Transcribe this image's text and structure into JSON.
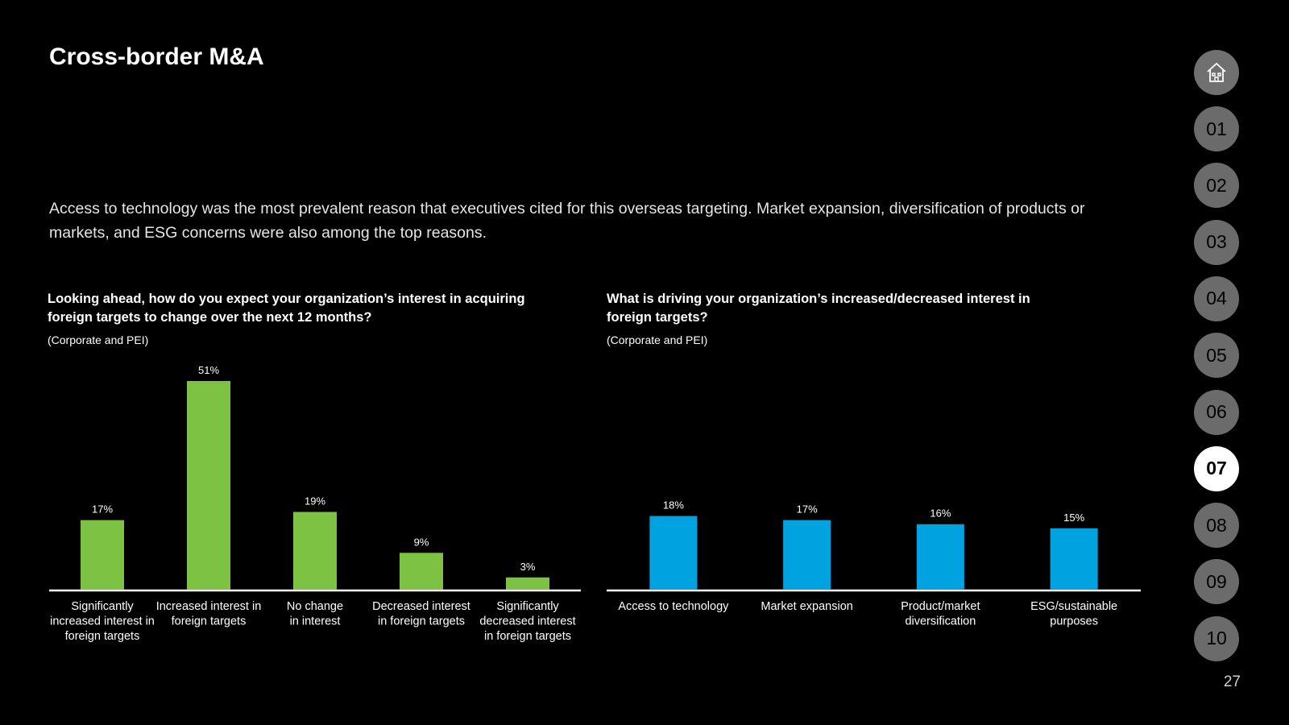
{
  "page": {
    "title": "Cross-border M&A",
    "intro": "Access to technology was the most prevalent reason that executives cited for this overseas targeting. Market expansion, diversification of products or markets, and ESG concerns were also among the top reasons.",
    "page_number": "27"
  },
  "nav": {
    "home_icon": "home-icon",
    "items": [
      "01",
      "02",
      "03",
      "04",
      "05",
      "06",
      "07",
      "08",
      "09",
      "10"
    ],
    "active": "07"
  },
  "chart_data": [
    {
      "type": "bar",
      "title": "Looking ahead, how do you expect your organization’s interest in acquiring foreign targets to change over the next 12 months?",
      "subtitle": "(Corporate and PEI)",
      "categories": [
        [
          "Significantly",
          "increased interest in",
          "foreign targets"
        ],
        [
          "Increased interest in",
          "foreign targets"
        ],
        [
          "No change",
          "in interest"
        ],
        [
          "Decreased interest",
          "in foreign targets"
        ],
        [
          "Significantly",
          "decreased interest",
          "in foreign targets"
        ]
      ],
      "values": [
        17,
        51,
        19,
        9,
        3
      ],
      "value_labels": [
        "17%",
        "51%",
        "19%",
        "9%",
        "3%"
      ],
      "ylim": [
        0,
        51
      ],
      "color": "#7DC242"
    },
    {
      "type": "bar",
      "title": "What is driving your organization’s increased/decreased interest in foreign targets?",
      "subtitle": "(Corporate and PEI)",
      "categories": [
        [
          "Access to technology"
        ],
        [
          "Market expansion"
        ],
        [
          "Product/market",
          "diversification"
        ],
        [
          "ESG/sustainable",
          "purposes"
        ]
      ],
      "values": [
        18,
        17,
        16,
        15
      ],
      "value_labels": [
        "18%",
        "17%",
        "16%",
        "15%"
      ],
      "ylim": [
        0,
        51
      ],
      "color": "#00A3E0"
    }
  ]
}
